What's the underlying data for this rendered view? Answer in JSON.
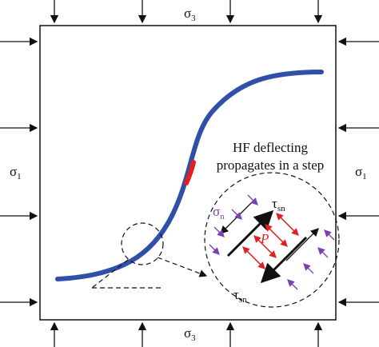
{
  "labels": {
    "sigma3_top": {
      "symbol": "σ",
      "subscript": "3"
    },
    "sigma3_bottom": {
      "symbol": "σ",
      "subscript": "3"
    },
    "sigma1_left": {
      "symbol": "σ",
      "subscript": "1"
    },
    "sigma1_right": {
      "symbol": "σ",
      "subscript": "1"
    },
    "sigma_n": {
      "symbol": "σ",
      "subscript": "n"
    },
    "tau_top": {
      "symbol": "τ",
      "subscript": "sn"
    },
    "tau_bottom": {
      "symbol": "τ",
      "subscript": "sn"
    },
    "pressure": "P"
  },
  "annotation": [
    "HF deflecting",
    "propagates in a step"
  ]
}
